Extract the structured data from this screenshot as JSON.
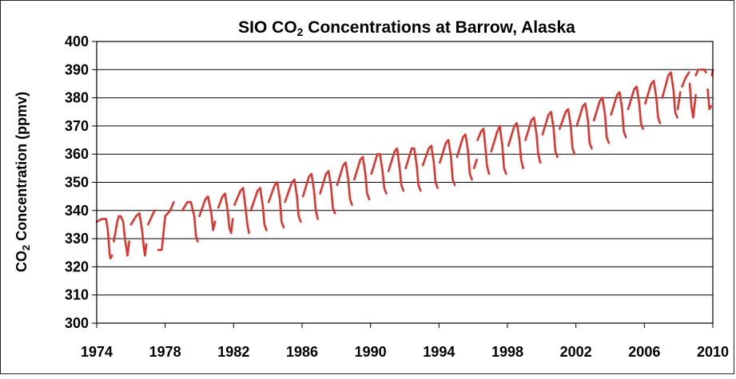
{
  "chart_data": {
    "type": "line",
    "title_prefix": "SIO CO",
    "title_sub": "2",
    "title_suffix": " Concentrations at Barrow, Alaska",
    "ylabel_prefix": "CO",
    "ylabel_sub": "2",
    "ylabel_suffix": " Concentration (ppmv)",
    "xlabel": "",
    "xlim": [
      1974,
      2010
    ],
    "ylim": [
      300,
      400
    ],
    "xticks": [
      1974,
      1978,
      1982,
      1986,
      1990,
      1994,
      1998,
      2002,
      2006,
      2010
    ],
    "yticks": [
      300,
      310,
      320,
      330,
      340,
      350,
      360,
      370,
      380,
      390,
      400
    ],
    "grid": "horizontal",
    "legend": "none",
    "series_color": "#e0342c",
    "series": [
      {
        "segments": [
          {
            "x": [
              1974.0,
              1974.3,
              1974.55,
              1974.65,
              1974.75,
              1974.8,
              1974.9
            ],
            "y": [
              336,
              337,
              337,
              333,
              325,
              323,
              324
            ]
          },
          {
            "x": [
              1975.0,
              1975.2,
              1975.3,
              1975.4,
              1975.55,
              1975.65,
              1975.75,
              1975.8,
              1975.9
            ],
            "y": [
              329,
              336,
              338,
              338,
              336,
              330,
              326,
              324,
              329
            ]
          },
          {
            "x": [
              1976.0,
              1976.3,
              1976.5,
              1976.65,
              1976.75,
              1976.82,
              1976.9
            ],
            "y": [
              335,
              338,
              339,
              333,
              327,
              324,
              328
            ]
          },
          {
            "x": [
              1977.0,
              1977.3,
              1977.4
            ],
            "y": [
              335,
              339,
              340
            ]
          },
          {
            "x": [
              1977.6,
              1977.8,
              1978.0,
              1978.3,
              1978.5
            ],
            "y": [
              326,
              326,
              338,
              340,
              343
            ]
          },
          {
            "x": [
              1979.0,
              1979.3,
              1979.5,
              1979.7,
              1979.8,
              1979.9
            ],
            "y": [
              340,
              343,
              343,
              338,
              331,
              329
            ]
          },
          {
            "x": [
              1980.0,
              1980.35,
              1980.5,
              1980.7,
              1980.8,
              1980.92
            ],
            "y": [
              338,
              344,
              345,
              339,
              333,
              336
            ]
          },
          {
            "x": [
              1981.1,
              1981.35,
              1981.5,
              1981.65,
              1981.75,
              1981.85,
              1981.95
            ],
            "y": [
              341,
              345,
              346,
              340,
              334,
              332,
              337
            ]
          },
          {
            "x": [
              1982.05,
              1982.4,
              1982.55,
              1982.7,
              1982.8,
              1982.9
            ],
            "y": [
              342,
              347,
              348,
              341,
              335,
              332
            ]
          },
          {
            "x": [
              1983.0,
              1983.4,
              1983.55,
              1983.7,
              1983.8,
              1983.92
            ],
            "y": [
              340,
              347,
              348,
              342,
              335,
              333
            ]
          },
          {
            "x": [
              1984.05,
              1984.4,
              1984.55,
              1984.7,
              1984.8,
              1984.92
            ],
            "y": [
              343,
              349,
              350,
              344,
              336,
              334
            ]
          },
          {
            "x": [
              1985.0,
              1985.4,
              1985.55,
              1985.7,
              1985.8,
              1985.92
            ],
            "y": [
              343,
              350,
              351,
              345,
              338,
              336
            ]
          },
          {
            "x": [
              1986.05,
              1986.4,
              1986.55,
              1986.7,
              1986.8,
              1986.92
            ],
            "y": [
              345,
              352,
              353,
              347,
              340,
              337
            ]
          },
          {
            "x": [
              1987.05,
              1987.4,
              1987.55,
              1987.7,
              1987.8,
              1987.92
            ],
            "y": [
              346,
              353,
              354,
              348,
              341,
              339
            ]
          },
          {
            "x": [
              1988.05,
              1988.4,
              1988.55,
              1988.7,
              1988.8,
              1988.92
            ],
            "y": [
              349,
              356,
              357,
              351,
              344,
              342
            ]
          },
          {
            "x": [
              1989.05,
              1989.4,
              1989.55,
              1989.7,
              1989.8,
              1989.92
            ],
            "y": [
              351,
              358,
              359,
              353,
              346,
              344
            ]
          },
          {
            "x": [
              1990.05,
              1990.4,
              1990.55,
              1990.7,
              1990.8,
              1990.92
            ],
            "y": [
              353,
              360,
              360,
              354,
              348,
              346
            ]
          },
          {
            "x": [
              1991.05,
              1991.4,
              1991.55,
              1991.7,
              1991.8,
              1991.92
            ],
            "y": [
              354,
              361,
              362,
              355,
              349,
              347
            ]
          },
          {
            "x": [
              1992.05,
              1992.4,
              1992.55,
              1992.7,
              1992.8,
              1992.92
            ],
            "y": [
              355,
              362,
              362,
              356,
              349,
              347
            ]
          },
          {
            "x": [
              1993.05,
              1993.4,
              1993.55,
              1993.7,
              1993.8,
              1993.92
            ],
            "y": [
              356,
              362,
              363,
              357,
              350,
              348
            ]
          },
          {
            "x": [
              1994.05,
              1994.4,
              1994.55,
              1994.7,
              1994.8,
              1994.92
            ],
            "y": [
              357,
              364,
              365,
              359,
              351,
              349
            ]
          },
          {
            "x": [
              1995.05,
              1995.4,
              1995.55,
              1995.7,
              1995.8,
              1995.92
            ],
            "y": [
              359,
              366,
              367,
              361,
              353,
              351
            ]
          },
          {
            "x": [
              1996.05,
              1996.2
            ],
            "y": [
              355,
              358
            ]
          },
          {
            "x": [
              1996.25,
              1996.45,
              1996.6,
              1996.7,
              1996.8,
              1996.92
            ],
            "y": [
              365,
              368,
              369,
              363,
              356,
              353
            ]
          },
          {
            "x": [
              1997.05,
              1997.4,
              1997.55,
              1997.7,
              1997.8,
              1997.92
            ],
            "y": [
              361,
              368,
              370,
              363,
              355,
              353
            ]
          },
          {
            "x": [
              1998.05,
              1998.4,
              1998.55,
              1998.7,
              1998.8,
              1998.92
            ],
            "y": [
              363,
              370,
              371,
              365,
              358,
              355
            ]
          },
          {
            "x": [
              1999.05,
              1999.4,
              1999.55,
              1999.7,
              1999.8,
              1999.92
            ],
            "y": [
              365,
              372,
              373,
              367,
              360,
              357
            ]
          },
          {
            "x": [
              2000.05,
              2000.4,
              2000.55,
              2000.7,
              2000.8,
              2000.92
            ],
            "y": [
              367,
              374,
              375,
              369,
              361,
              359
            ]
          },
          {
            "x": [
              2001.05,
              2001.4,
              2001.55,
              2001.7,
              2001.8,
              2001.92
            ],
            "y": [
              369,
              375,
              376,
              370,
              362,
              360
            ]
          },
          {
            "x": [
              2002.05,
              2002.4,
              2002.55,
              2002.7,
              2002.8,
              2002.92
            ],
            "y": [
              370,
              377,
              378,
              372,
              364,
              362
            ]
          },
          {
            "x": [
              2003.05,
              2003.4,
              2003.55,
              2003.7,
              2003.8,
              2003.92
            ],
            "y": [
              372,
              379,
              380,
              374,
              366,
              364
            ]
          },
          {
            "x": [
              2004.05,
              2004.4,
              2004.55,
              2004.7,
              2004.8,
              2004.92
            ],
            "y": [
              374,
              381,
              382,
              376,
              368,
              366
            ]
          },
          {
            "x": [
              2005.05,
              2005.4,
              2005.55,
              2005.7,
              2005.8,
              2005.92
            ],
            "y": [
              376,
              383,
              384,
              378,
              371,
              369
            ]
          },
          {
            "x": [
              2006.05,
              2006.4,
              2006.55,
              2006.7,
              2006.8,
              2006.92
            ],
            "y": [
              378,
              385,
              386,
              380,
              373,
              371
            ]
          },
          {
            "x": [
              2007.05,
              2007.4,
              2007.55,
              2007.7,
              2007.8,
              2007.92
            ],
            "y": [
              380,
              388,
              389,
              383,
              375,
              373
            ]
          },
          {
            "x": [
              2007.95,
              2008.1
            ],
            "y": [
              376,
              382
            ]
          },
          {
            "x": [
              2008.2,
              2008.4,
              2008.5,
              2008.6
            ],
            "y": [
              384,
              387,
              388,
              389
            ]
          },
          {
            "x": [
              2008.65,
              2008.75,
              2008.85,
              2009.0
            ],
            "y": [
              385,
              377,
              373,
              381
            ]
          },
          {
            "x": [
              2009.0,
              2009.15
            ],
            "y": [
              388,
              390
            ]
          },
          {
            "x": [
              2009.3,
              2009.5,
              2009.6
            ],
            "y": [
              390,
              390,
              389
            ]
          },
          {
            "x": [
              2009.7,
              2009.8,
              2009.9
            ],
            "y": [
              383,
              376,
              377
            ]
          },
          {
            "x": [
              2009.95,
              2010.0
            ],
            "y": [
              388,
              390
            ]
          }
        ]
      }
    ]
  }
}
